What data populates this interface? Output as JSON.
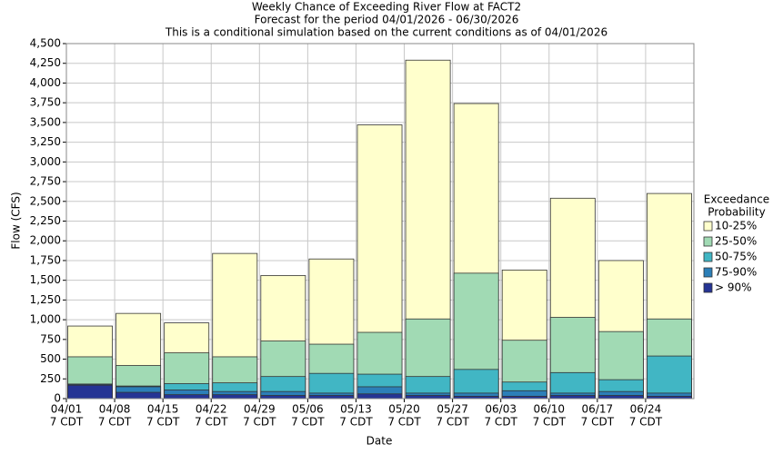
{
  "chart_data": {
    "type": "bar",
    "overlap": true,
    "title": "Weekly Chance of Exceeding River Flow at FACT2",
    "subtitle": "Forecast for the period 04/01/2026 - 06/30/2026",
    "note": "This is a conditional simulation based on the current conditions as of 04/01/2026",
    "x_label": "Date",
    "y_label": "Flow (CFS)",
    "legend_title": [
      "Exceedance",
      "Probability"
    ],
    "legend": "right",
    "categories": [
      "04/01",
      "04/08",
      "04/15",
      "04/22",
      "04/29",
      "05/06",
      "05/13",
      "05/20",
      "05/27",
      "06/03",
      "06/10",
      "06/17",
      "06/24"
    ],
    "x_sublabels": [
      "7 CDT",
      "7 CDT",
      "7 CDT",
      "7 CDT",
      "7 CDT",
      "7 CDT",
      "7 CDT",
      "7 CDT",
      "7 CDT",
      "7 CDT",
      "7 CDT",
      "7 CDT",
      "7 CDT"
    ],
    "series": [
      {
        "name": "10-25%",
        "color": "#ffffcc",
        "values": [
          920,
          1080,
          960,
          1840,
          1560,
          1770,
          3470,
          4290,
          3740,
          1630,
          2540,
          1750,
          2600
        ]
      },
      {
        "name": "25-50%",
        "color": "#a1dab4",
        "values": [
          530,
          420,
          580,
          530,
          730,
          690,
          840,
          1010,
          1590,
          740,
          1030,
          850,
          1010
        ]
      },
      {
        "name": "50-75%",
        "color": "#41b6c4",
        "values": [
          185,
          160,
          190,
          200,
          280,
          320,
          310,
          280,
          370,
          210,
          330,
          240,
          540
        ]
      },
      {
        "name": "75-90%",
        "color": "#2c7fb8",
        "values": [
          180,
          150,
          110,
          90,
          90,
          70,
          150,
          70,
          70,
          100,
          70,
          90,
          70
        ]
      },
      {
        "name": "> 90%",
        "color": "#253494",
        "values": [
          170,
          80,
          50,
          50,
          40,
          40,
          60,
          40,
          30,
          30,
          40,
          40,
          30
        ]
      }
    ],
    "ylim": [
      0,
      4500
    ],
    "yticks": [
      0,
      250,
      500,
      750,
      {
        "value": 1000,
        "label": "1,000"
      },
      {
        "value": 1250,
        "label": "1,250"
      },
      {
        "value": 1500,
        "label": "1,500"
      },
      {
        "value": 1750,
        "label": "1,750"
      },
      {
        "value": 2000,
        "label": "2,000"
      },
      {
        "value": 2250,
        "label": "2,250"
      },
      {
        "value": 2500,
        "label": "2,500"
      },
      {
        "value": 2750,
        "label": "2,750"
      },
      {
        "value": 3000,
        "label": "3,000"
      },
      {
        "value": 3250,
        "label": "3,250"
      },
      {
        "value": 3500,
        "label": "3,500"
      },
      {
        "value": 3750,
        "label": "3,750"
      },
      {
        "value": 4000,
        "label": "4,000"
      },
      {
        "value": 4250,
        "label": "4,250"
      },
      {
        "value": 4500,
        "label": "4,500"
      }
    ],
    "grid": true
  }
}
